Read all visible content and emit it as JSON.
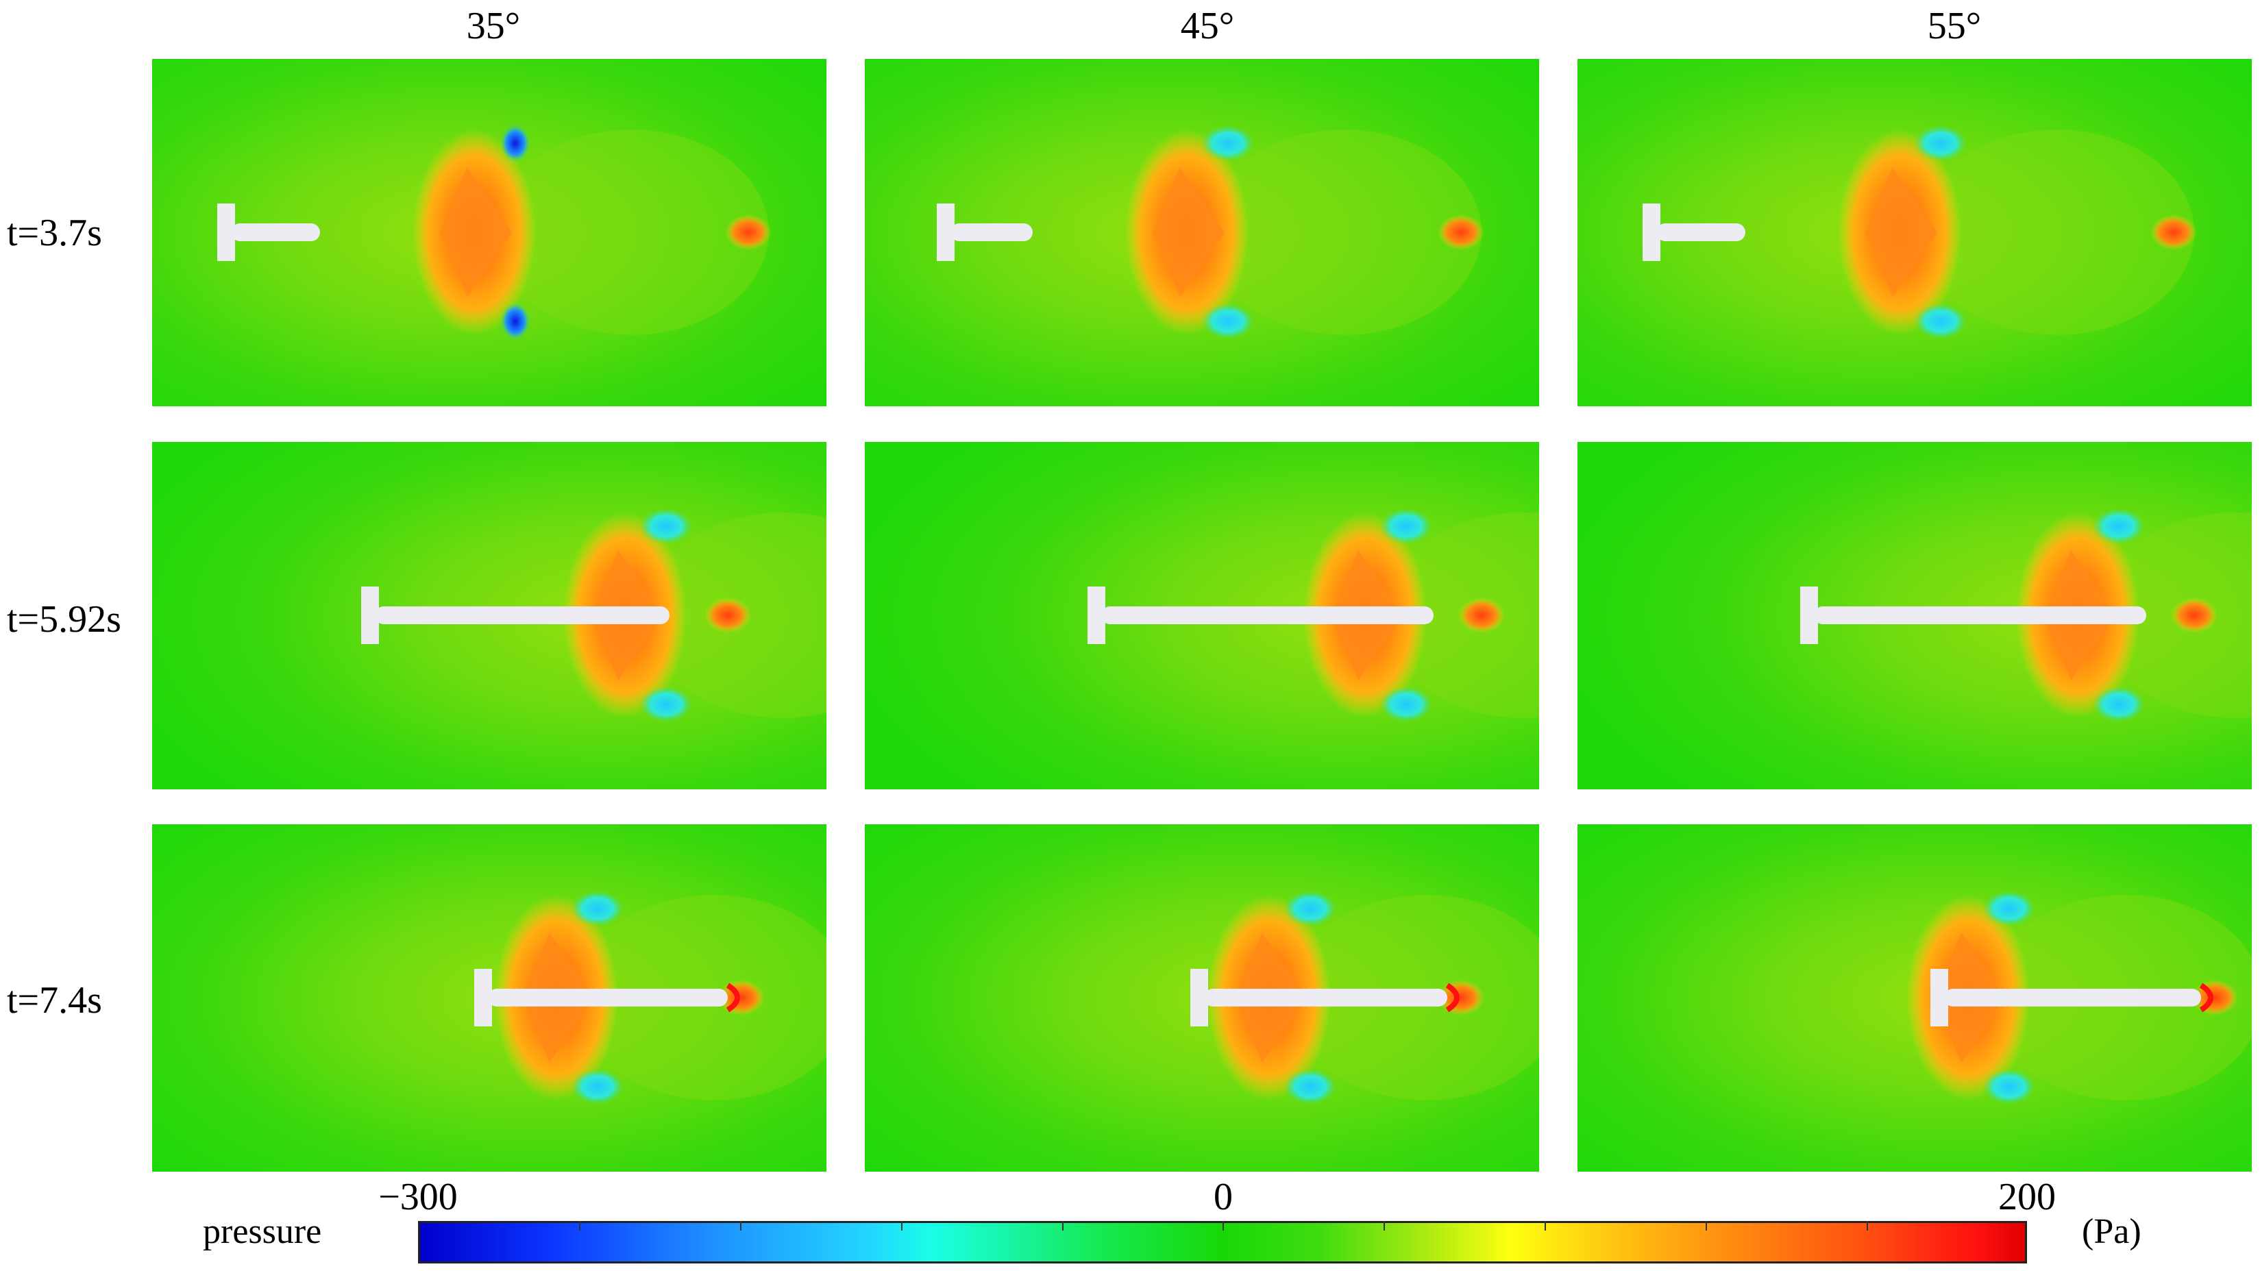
{
  "columns": [
    "35°",
    "45°",
    "55°"
  ],
  "rows": [
    "t=3.7s",
    "t=5.92s",
    "t=7.4s"
  ],
  "colorbar": {
    "title": "pressure",
    "unit": "(Pa)",
    "min_label": "−300",
    "mid_label": "0",
    "max_label": "200",
    "range": [
      -300,
      200
    ]
  },
  "colors": {
    "background_field": "#1ed80a",
    "high_pressure": "#ff6a10",
    "low_pressure": "#0a2ee0",
    "body": "#e8e8ee"
  }
}
